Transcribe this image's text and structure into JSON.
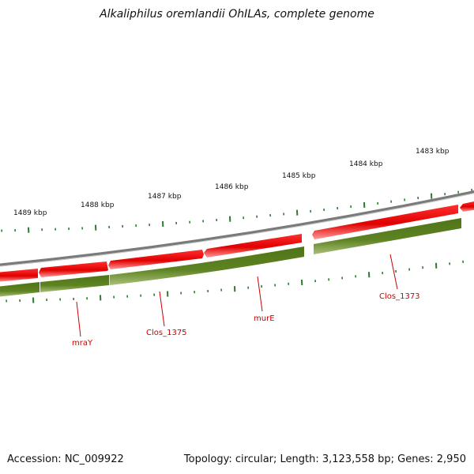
{
  "title": "Alkaliphilus oremlandii OhILAs, complete genome",
  "scale_labels": [
    "1489 kbp",
    "1488 kbp",
    "1487 kbp",
    "1486 kbp",
    "1485 kbp",
    "1484 kbp",
    "1483 kbp"
  ],
  "gene_labels": [
    "mraY",
    "Clos_1375",
    "murE",
    "Clos_1373"
  ],
  "footer": {
    "accession": "Accession: NC_009922",
    "stats": "Topology: circular; Length: 3,123,558 bp; Genes: 2,950"
  },
  "colors": {
    "backbone": "#7a7a7a",
    "forward_genes": "#e00000",
    "all_genes": "#5a7d1e",
    "ticks": "#2f7a2f",
    "labels": "#cc0000"
  }
}
